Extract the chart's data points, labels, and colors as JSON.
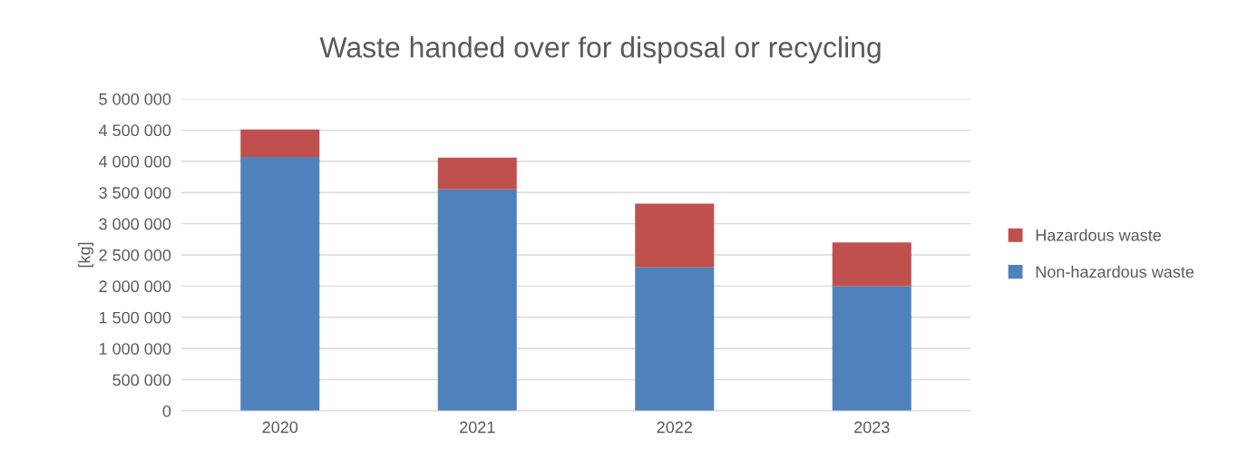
{
  "chart_data": {
    "type": "bar",
    "title": "Waste handed over for disposal or recycling",
    "ylabel": "[kg]",
    "categories": [
      "2020",
      "2021",
      "2022",
      "2023"
    ],
    "stacked": true,
    "series": [
      {
        "name": "Non-hazardous waste",
        "color": "#4f81bd",
        "values": [
          4070000,
          3550000,
          2300000,
          2000000
        ]
      },
      {
        "name": "Hazardous waste",
        "color": "#c0504d",
        "values": [
          440000,
          510000,
          1020000,
          700000
        ]
      }
    ],
    "ylim": [
      0,
      5000000
    ],
    "yticks": [
      {
        "value": 0,
        "label": "0"
      },
      {
        "value": 500000,
        "label": "500 000"
      },
      {
        "value": 1000000,
        "label": "1 000 000"
      },
      {
        "value": 1500000,
        "label": "1 500 000"
      },
      {
        "value": 2000000,
        "label": "2 000 000"
      },
      {
        "value": 2500000,
        "label": "2 500 000"
      },
      {
        "value": 3000000,
        "label": "3 000 000"
      },
      {
        "value": 3500000,
        "label": "3 500 000"
      },
      {
        "value": 4000000,
        "label": "4 000 000"
      },
      {
        "value": 4500000,
        "label": "4 500 000"
      },
      {
        "value": 5000000,
        "label": "5 000 000"
      }
    ],
    "grid": "y",
    "legend": "right"
  }
}
